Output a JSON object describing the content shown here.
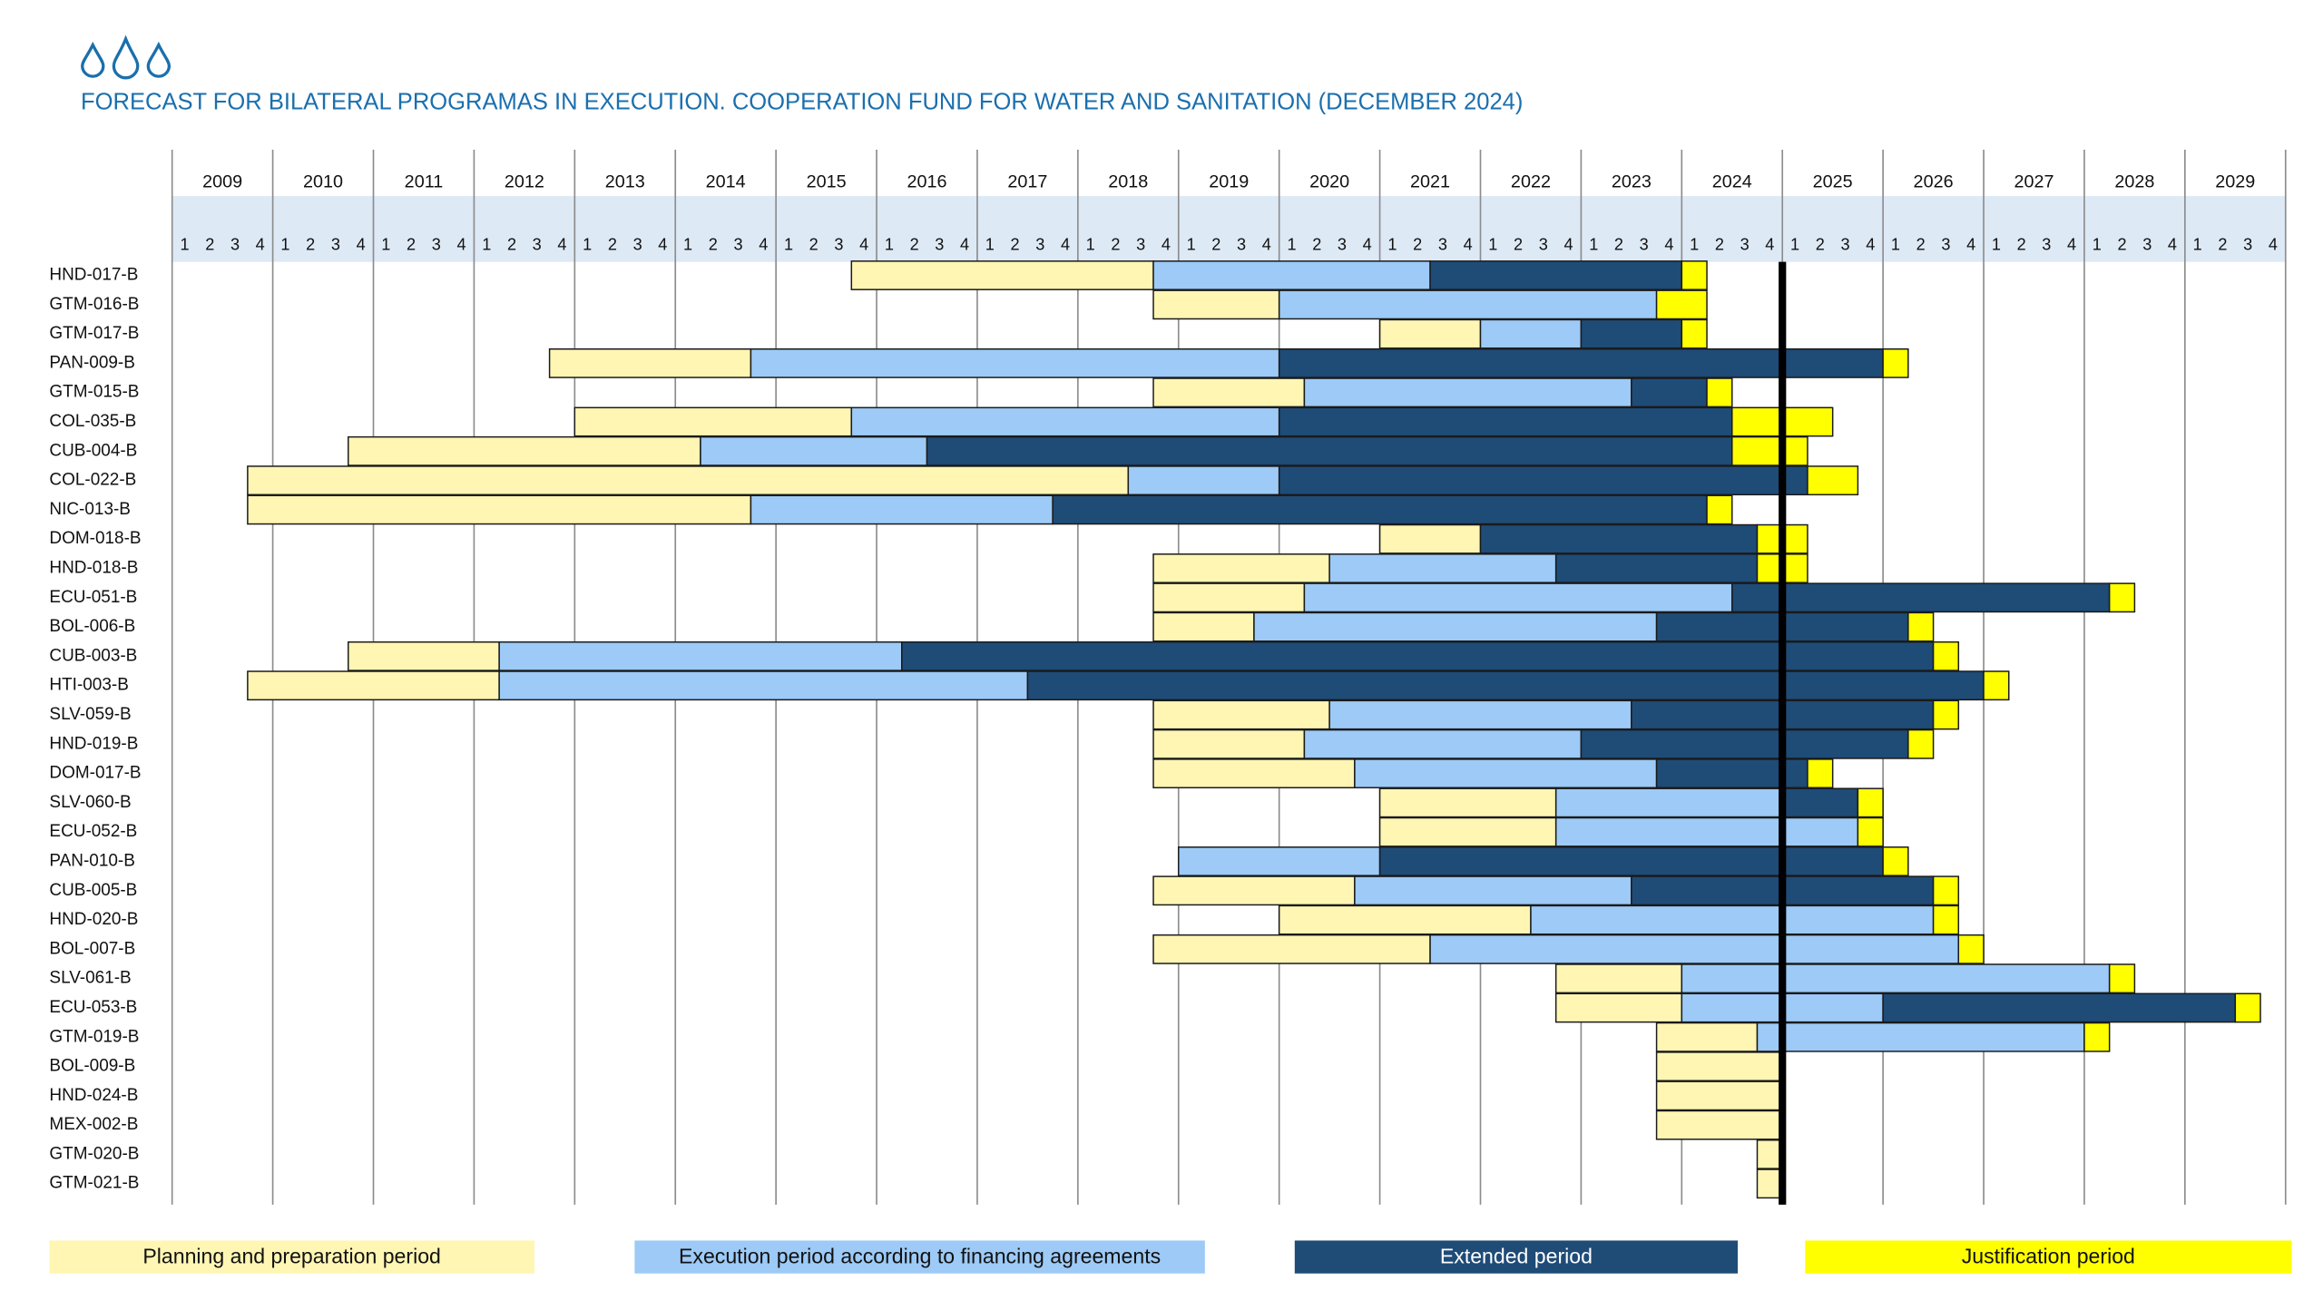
{
  "chart_data": {
    "type": "gantt",
    "title": "FORECAST FOR BILATERAL PROGRAMAS IN EXECUTION. COOPERATION FUND FOR WATER AND SANITATION (DECEMBER 2024)",
    "years": [
      2009,
      2010,
      2011,
      2012,
      2013,
      2014,
      2015,
      2016,
      2017,
      2018,
      2019,
      2020,
      2021,
      2022,
      2023,
      2024,
      2025,
      2026,
      2027,
      2028,
      2029
    ],
    "quarters": [
      1,
      2,
      3,
      4
    ],
    "xlim": [
      2009,
      2030
    ],
    "current_date": 2025,
    "categories": [
      "HND-017-B",
      "GTM-016-B",
      "GTM-017-B",
      "PAN-009-B",
      "GTM-015-B",
      "COL-035-B",
      "CUB-004-B",
      "COL-022-B",
      "NIC-013-B",
      "DOM-018-B",
      "HND-018-B",
      "ECU-051-B",
      "BOL-006-B",
      "CUB-003-B",
      "HTI-003-B",
      "SLV-059-B",
      "HND-019-B",
      "DOM-017-B",
      "SLV-060-B",
      "ECU-052-B",
      "PAN-010-B",
      "CUB-005-B",
      "HND-020-B",
      "BOL-007-B",
      "SLV-061-B",
      "ECU-053-B",
      "GTM-019-B",
      "BOL-009-B",
      "HND-024-B",
      "MEX-002-B",
      "GTM-020-B",
      "GTM-021-B"
    ],
    "series": [
      {
        "name": "Planning and preparation period",
        "color": "#fff6b3",
        "start": [
          2015.75,
          2018.75,
          2021,
          2012.75,
          2018.75,
          2013,
          2010.75,
          2009.75,
          2009.75,
          2021,
          2018.75,
          2018.75,
          2018.75,
          2010.75,
          2009.75,
          2018.75,
          2018.75,
          2018.75,
          2021,
          2021,
          null,
          2018.75,
          2020,
          2018.75,
          2022.75,
          2022.75,
          2023.75,
          2023.75,
          2023.75,
          2023.75,
          2024.75,
          2024.75
        ],
        "end": [
          2018.75,
          2020,
          2022,
          2014.75,
          2020.25,
          2015.75,
          2014.25,
          2018.5,
          2014.75,
          2022,
          2020.5,
          2020.25,
          2019.75,
          2012.25,
          2012.25,
          2020.5,
          2020.25,
          2020.75,
          2022.75,
          2022.75,
          null,
          2020.75,
          2022.5,
          2021.5,
          2024,
          2024,
          2024.75,
          2025,
          2025,
          2025,
          2025,
          2025
        ]
      },
      {
        "name": "Execution period according to financing agreements",
        "color": "#9dcaf6",
        "start": [
          2018.75,
          2020,
          2022,
          2014.75,
          2020.25,
          2015.75,
          2014.25,
          2018.5,
          2014.75,
          null,
          2020.5,
          2020.25,
          2019.75,
          2012.25,
          2012.25,
          2020.5,
          2020.25,
          2020.75,
          2022.75,
          2022.75,
          2019,
          2020.75,
          2022.5,
          2021.5,
          2024,
          2024,
          2024.75,
          null,
          null,
          null,
          null,
          null
        ],
        "end": [
          2021.5,
          2023.75,
          2023,
          2020,
          2023.5,
          2020,
          2016.5,
          2020,
          2017.75,
          null,
          2022.75,
          2024.5,
          2023.75,
          2016.25,
          2017.5,
          2023.5,
          2023,
          2023.75,
          2025,
          2025.75,
          2021,
          2023.5,
          2026.5,
          2026.75,
          2028.25,
          2026,
          2028,
          null,
          null,
          null,
          null,
          null
        ]
      },
      {
        "name": "Extended period",
        "color": "#1f4b77",
        "start": [
          2021.5,
          null,
          2023,
          2020,
          2023.5,
          2020,
          2016.5,
          2020,
          2017.75,
          2022,
          2022.75,
          2024.5,
          2023.75,
          2016.25,
          2017.5,
          2023.5,
          2023,
          2023.75,
          2025,
          null,
          2021,
          2023.5,
          null,
          null,
          null,
          2026,
          null,
          null,
          null,
          null,
          null,
          null
        ],
        "end": [
          2024,
          null,
          2024,
          2026,
          2024.25,
          2024.5,
          2024.5,
          2025.25,
          2024.25,
          2024.75,
          2024.75,
          2028.25,
          2026.25,
          2026.5,
          2027,
          2026.5,
          2026.25,
          2025.25,
          2025.75,
          null,
          2026,
          2026.5,
          null,
          null,
          null,
          2029.5,
          null,
          null,
          null,
          null,
          null,
          null
        ]
      },
      {
        "name": "Justification period",
        "color": "#ffff00",
        "start": [
          2024,
          2023.75,
          2024,
          2026,
          2024.25,
          2024.5,
          2024.5,
          2025.25,
          2024.25,
          2024.75,
          2024.75,
          2028.25,
          2026.25,
          2026.5,
          2027,
          2026.5,
          2026.25,
          2025.25,
          2025.75,
          2025.75,
          2026,
          2026.5,
          2026.5,
          2026.75,
          2028.25,
          2029.5,
          2028,
          null,
          null,
          null,
          null,
          null
        ],
        "end": [
          2024.25,
          2024.25,
          2024.25,
          2026.25,
          2024.5,
          2025.5,
          2025.25,
          2025.75,
          2024.5,
          2025.25,
          2025.25,
          2028.5,
          2026.5,
          2026.75,
          2027.25,
          2026.75,
          2026.5,
          2025.5,
          2026,
          2026,
          2026.25,
          2026.75,
          2026.75,
          2027,
          2028.5,
          2029.75,
          2028.25,
          null,
          null,
          null,
          null,
          null
        ]
      }
    ]
  }
}
